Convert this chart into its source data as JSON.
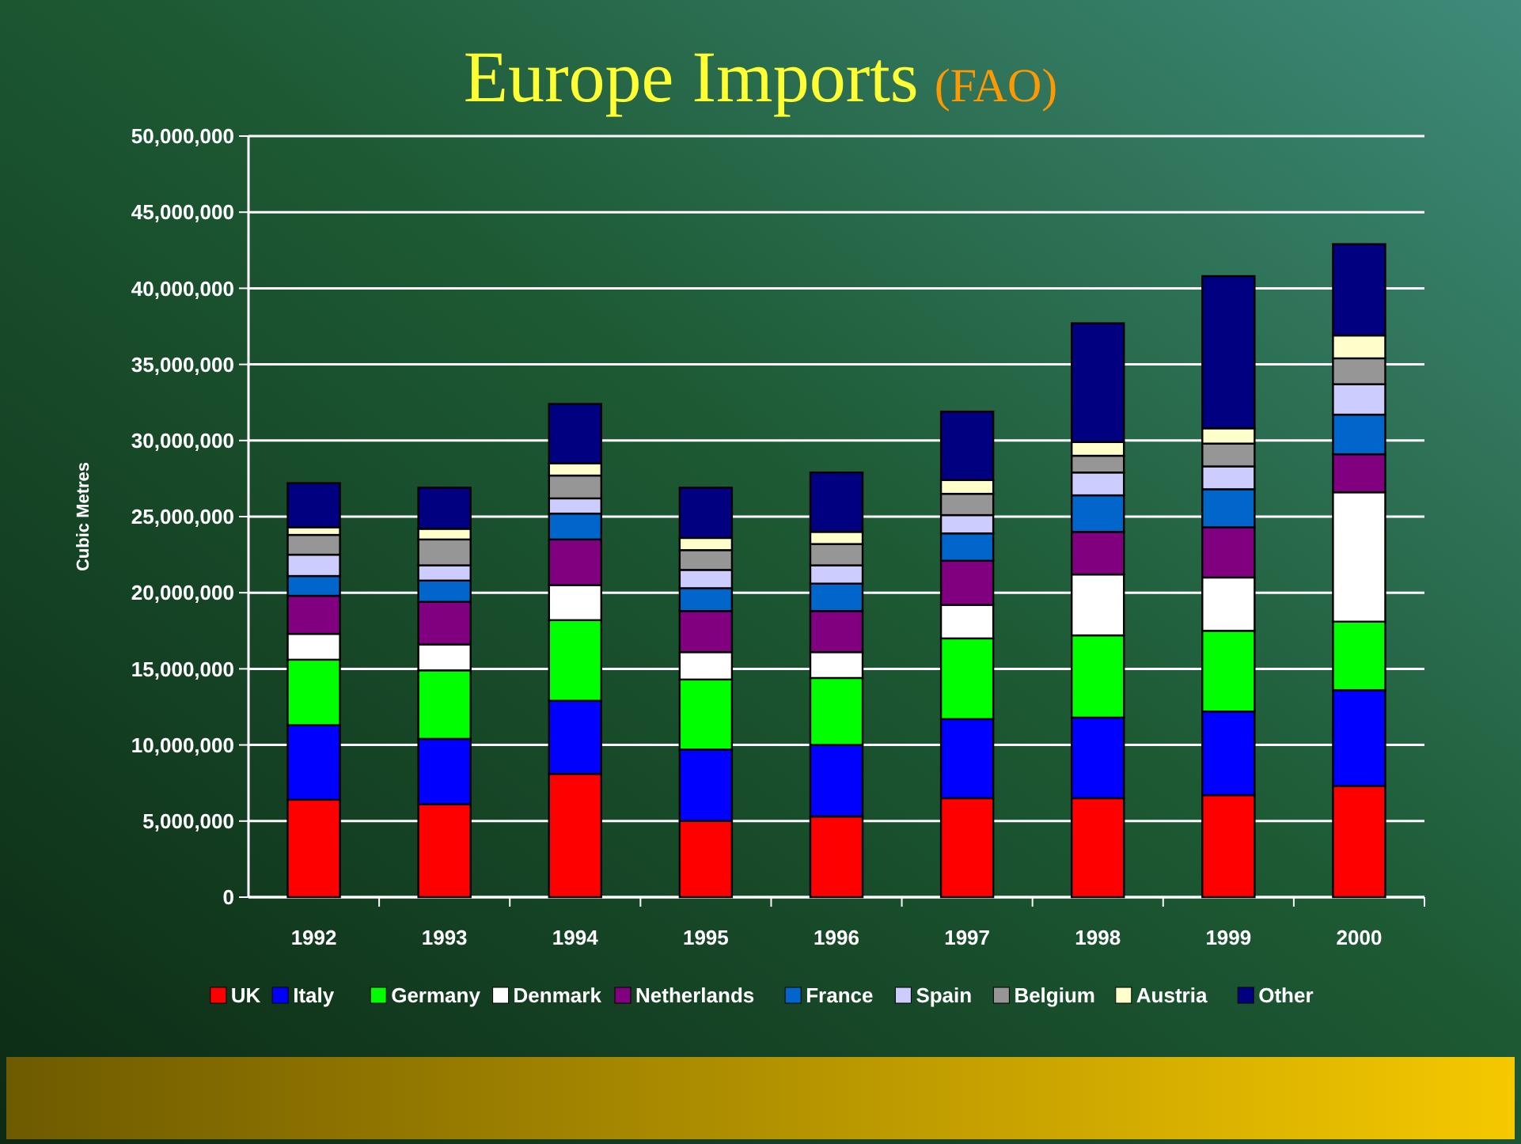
{
  "chart_data": {
    "type": "bar",
    "stacked": true,
    "title": "Europe Imports",
    "subtitle": "(FAO)",
    "ylabel": "Cubic Metres",
    "categories": [
      "1992",
      "1993",
      "1994",
      "1995",
      "1996",
      "1997",
      "1998",
      "1999",
      "2000"
    ],
    "ylim": [
      0,
      50000000
    ],
    "yticks": [
      {
        "value": 0,
        "label": "0"
      },
      {
        "value": 5000000,
        "label": "5,000,000"
      },
      {
        "value": 10000000,
        "label": "10,000,000"
      },
      {
        "value": 15000000,
        "label": "15,000,000"
      },
      {
        "value": 20000000,
        "label": "20,000,000"
      },
      {
        "value": 25000000,
        "label": "25,000,000"
      },
      {
        "value": 30000000,
        "label": "30,000,000"
      },
      {
        "value": 35000000,
        "label": "35,000,000"
      },
      {
        "value": 40000000,
        "label": "40,000,000"
      },
      {
        "value": 45000000,
        "label": "45,000,000"
      },
      {
        "value": 50000000,
        "label": "50,000,000"
      }
    ],
    "grid": "y",
    "legend": "bottom",
    "series": [
      {
        "name": "UK",
        "color": "#ff0000",
        "values": [
          6400000,
          6100000,
          8100000,
          5000000,
          5300000,
          6500000,
          6500000,
          6700000,
          7300000
        ]
      },
      {
        "name": "Italy",
        "color": "#0000ff",
        "values": [
          4900000,
          4300000,
          4800000,
          4700000,
          4700000,
          5200000,
          5300000,
          5500000,
          6300000
        ]
      },
      {
        "name": "Germany",
        "color": "#00ff00",
        "values": [
          4300000,
          4500000,
          5300000,
          4600000,
          4400000,
          5300000,
          5400000,
          5300000,
          4500000
        ]
      },
      {
        "name": "Denmark",
        "color": "#ffffff",
        "values": [
          1700000,
          1700000,
          2300000,
          1800000,
          1700000,
          2200000,
          4000000,
          3500000,
          8500000
        ]
      },
      {
        "name": "Netherlands",
        "color": "#800080",
        "values": [
          2500000,
          2800000,
          3000000,
          2700000,
          2700000,
          2900000,
          2800000,
          3300000,
          2500000
        ]
      },
      {
        "name": "France",
        "color": "#0066cc",
        "values": [
          1300000,
          1400000,
          1700000,
          1500000,
          1800000,
          1800000,
          2400000,
          2500000,
          2600000
        ]
      },
      {
        "name": "Spain",
        "color": "#ccccff",
        "values": [
          1400000,
          1000000,
          1000000,
          1200000,
          1200000,
          1200000,
          1500000,
          1500000,
          2000000
        ]
      },
      {
        "name": "Belgium",
        "color": "#969696",
        "values": [
          1300000,
          1700000,
          1500000,
          1300000,
          1400000,
          1400000,
          1100000,
          1500000,
          1700000
        ]
      },
      {
        "name": "Austria",
        "color": "#ffffcc",
        "values": [
          500000,
          700000,
          800000,
          800000,
          800000,
          900000,
          900000,
          1000000,
          1500000
        ]
      },
      {
        "name": "Other",
        "color": "#000080",
        "values": [
          2900000,
          2700000,
          3900000,
          3300000,
          3900000,
          4500000,
          7800000,
          10000000,
          6000000
        ]
      }
    ]
  }
}
